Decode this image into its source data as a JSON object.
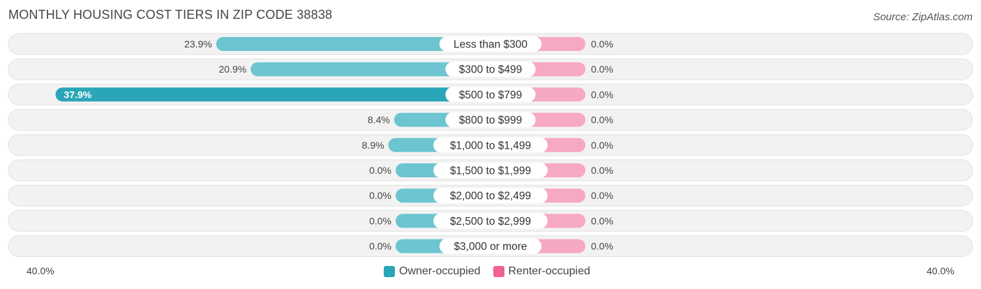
{
  "title": "MONTHLY HOUSING COST TIERS IN ZIP CODE 38838",
  "source": "Source: ZipAtlas.com",
  "colors": {
    "owner": "#6cc5d0",
    "owner_strong": "#2aa6b8",
    "renter": "#f7a8c4",
    "renter_legend": "#f06292",
    "track": "#efefef"
  },
  "legend": {
    "owner": "Owner-occupied",
    "renter": "Renter-occupied"
  },
  "axis": {
    "left_label": "40.0%",
    "right_label": "40.0%"
  },
  "chart_data": {
    "type": "bar",
    "orientation": "diverging-horizontal",
    "title": "MONTHLY HOUSING COST TIERS IN ZIP CODE 38838",
    "categories": [
      "Less than $300",
      "$300 to $499",
      "$500 to $799",
      "$800 to $999",
      "$1,000 to $1,499",
      "$1,500 to $1,999",
      "$2,000 to $2,499",
      "$2,500 to $2,999",
      "$3,000 or more"
    ],
    "series": [
      {
        "name": "Owner-occupied",
        "values": [
          23.9,
          20.9,
          37.9,
          8.4,
          8.9,
          0.0,
          0.0,
          0.0,
          0.0
        ],
        "labels": [
          "23.9%",
          "20.9%",
          "37.9%",
          "8.4%",
          "8.9%",
          "0.0%",
          "0.0%",
          "0.0%",
          "0.0%"
        ]
      },
      {
        "name": "Renter-occupied",
        "values": [
          0.0,
          0.0,
          0.0,
          0.0,
          0.0,
          0.0,
          0.0,
          0.0,
          0.0
        ],
        "labels": [
          "0.0%",
          "0.0%",
          "0.0%",
          "0.0%",
          "0.0%",
          "0.0%",
          "0.0%",
          "0.0%",
          "0.0%"
        ]
      }
    ],
    "xlim": [
      -40,
      40
    ],
    "legend_position": "bottom-center"
  }
}
